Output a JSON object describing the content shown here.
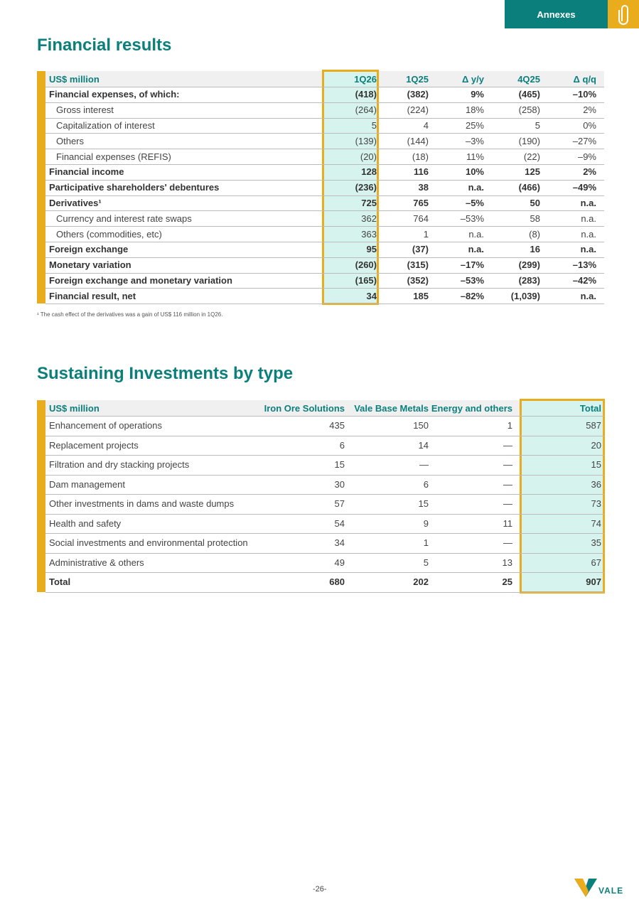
{
  "header": {
    "tab": "Annexes"
  },
  "financial": {
    "title": "Financial results",
    "columns": [
      "US$ million",
      "1Q26",
      "1Q25",
      "Δ y/y",
      "4Q25",
      "Δ q/q"
    ],
    "rows": [
      [
        "Financial expenses, of which:",
        "(418)",
        "(382)",
        "9%",
        "(465)",
        "–10%"
      ],
      [
        "Gross interest",
        "(264)",
        "(224)",
        "18%",
        "(258)",
        "2%"
      ],
      [
        "Capitalization of interest",
        "5",
        "4",
        "25%",
        "5",
        "0%"
      ],
      [
        "Others",
        "(139)",
        "(144)",
        "–3%",
        "(190)",
        "–27%"
      ],
      [
        "Financial expenses (REFIS)",
        "(20)",
        "(18)",
        "11%",
        "(22)",
        "–9%"
      ],
      [
        "Financial income",
        "128",
        "116",
        "10%",
        "125",
        "2%"
      ],
      [
        "Participative shareholders' debentures",
        "(236)",
        "38",
        "n.a.",
        "(466)",
        "–49%"
      ],
      [
        "Derivatives¹",
        "725",
        "765",
        "–5%",
        "50",
        "n.a."
      ],
      [
        "Currency and interest rate swaps",
        "362",
        "764",
        "–53%",
        "58",
        "n.a."
      ],
      [
        "Others (commodities, etc)",
        "363",
        "1",
        "n.a.",
        "(8)",
        "n.a."
      ],
      [
        "Foreign exchange",
        "95",
        "(37)",
        "n.a.",
        "16",
        "n.a."
      ],
      [
        "Monetary variation",
        "(260)",
        "(315)",
        "–17%",
        "(299)",
        "–13%"
      ],
      [
        "Foreign exchange and monetary variation",
        "(165)",
        "(352)",
        "–53%",
        "(283)",
        "–42%"
      ],
      [
        "Financial result, net",
        "34",
        "185",
        "–82%",
        "(1,039)",
        "n.a."
      ]
    ],
    "footnote": "¹ The cash effect of the derivatives was a gain of US$ 116  million in 1Q26."
  },
  "sustaining": {
    "title": "Sustaining Investments by type",
    "columns": [
      "US$ million",
      "Iron Ore Solutions",
      "Vale Base Metals",
      "Energy and others",
      "Total"
    ],
    "rows": [
      [
        "Enhancement of operations",
        "435",
        "150",
        "1",
        "587"
      ],
      [
        "Replacement projects",
        "6",
        "14",
        "—",
        "20"
      ],
      [
        "Filtration and dry stacking projects",
        "15",
        "—",
        "—",
        "15"
      ],
      [
        "Dam management",
        "30",
        "6",
        "—",
        "36"
      ],
      [
        "Other investments in dams and waste dumps",
        "57",
        "15",
        "—",
        "73"
      ],
      [
        "Health and safety",
        "54",
        "9",
        "11",
        "74"
      ],
      [
        "Social investments and environmental protection",
        "34",
        "1",
        "—",
        "35"
      ],
      [
        "Administrative & others",
        "49",
        "5",
        "13",
        "67"
      ],
      [
        "Total",
        "680",
        "202",
        "25",
        "907"
      ]
    ]
  },
  "footer": {
    "page": "-26-",
    "logo": "VALE"
  }
}
